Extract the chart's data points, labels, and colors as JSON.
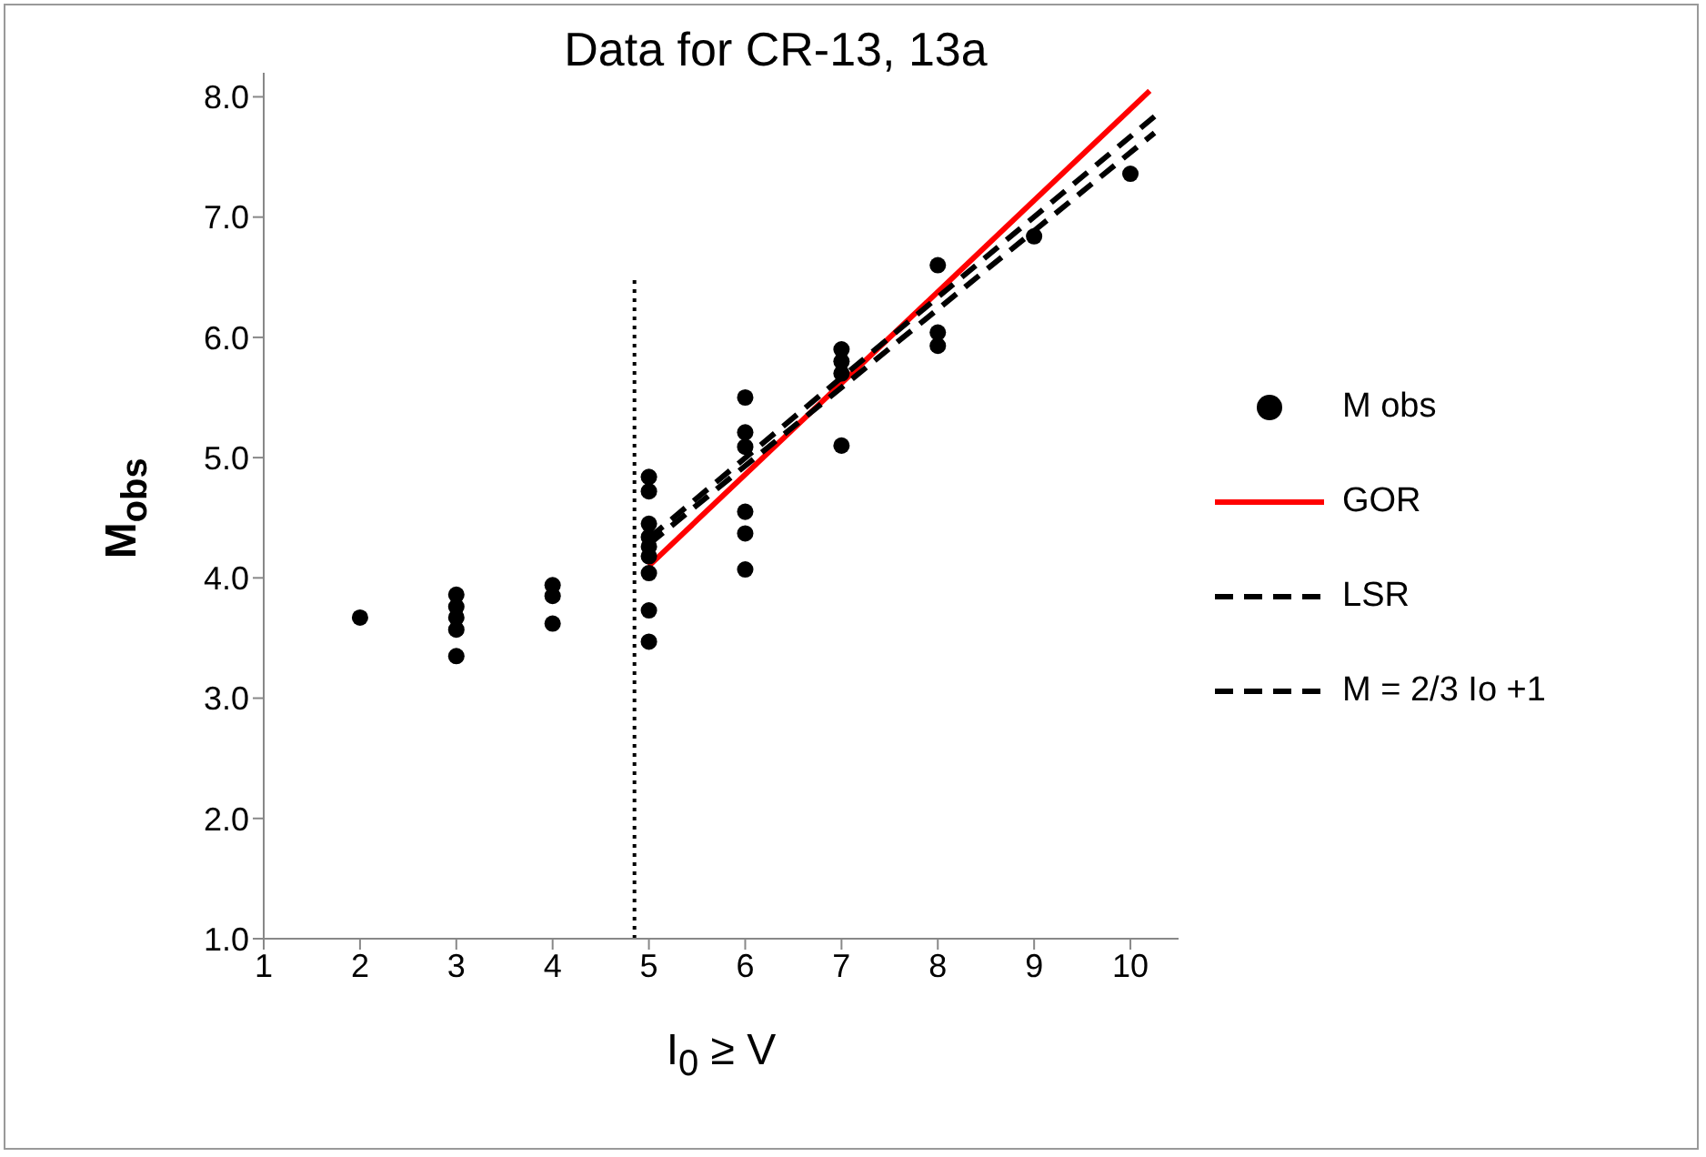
{
  "chart_data": {
    "type": "scatter",
    "title": "Data for CR-13, 13a",
    "xlabel": "I$_{0}$ ≥ V",
    "ylabel": "M$_{obs}$",
    "xlim": [
      1,
      10.5
    ],
    "xticks": [
      1,
      2,
      3,
      4,
      5,
      6,
      7,
      8,
      9,
      10
    ],
    "ylim": [
      1,
      8.2
    ],
    "yticks": [
      {
        "value": 1,
        "label": "1.0"
      },
      {
        "value": 2,
        "label": "2.0"
      },
      {
        "value": 3,
        "label": "3.0"
      },
      {
        "value": 4,
        "label": "4.0"
      },
      {
        "value": 5,
        "label": "5.0"
      },
      {
        "value": 6,
        "label": "6.0"
      },
      {
        "value": 7,
        "label": "7.0"
      },
      {
        "value": 8,
        "label": "8.0"
      }
    ],
    "grid": false,
    "legend": "right",
    "marker": "circle",
    "series": [
      {
        "name": "M obs",
        "color": "#000000",
        "x": [
          2,
          3,
          3,
          3,
          3,
          3,
          4,
          4,
          4,
          5,
          5,
          5,
          5,
          5,
          5,
          5,
          5,
          5,
          6,
          6,
          6,
          6,
          6,
          6,
          7,
          7,
          7,
          7,
          8,
          8,
          8,
          9,
          10
        ],
        "values": [
          3.67,
          3.86,
          3.76,
          3.67,
          3.57,
          3.35,
          3.94,
          3.85,
          3.62,
          4.84,
          4.72,
          4.45,
          4.34,
          4.26,
          4.18,
          4.04,
          3.73,
          3.47,
          5.5,
          5.21,
          5.09,
          4.55,
          4.37,
          4.07,
          5.9,
          5.8,
          5.7,
          5.1,
          6.6,
          6.04,
          5.93,
          6.84,
          7.36
        ]
      },
      {
        "name": "GOR",
        "type": "line",
        "marker": "none",
        "line_style": "solid",
        "color": "#ff0000",
        "x": [
          5,
          10.2
        ],
        "values": [
          4.1,
          8.05
        ]
      },
      {
        "name": "LSR",
        "type": "line",
        "marker": "none",
        "line_style": "dashed",
        "color": "#000000",
        "x": [
          5,
          10.25
        ],
        "values": [
          4.28,
          7.7
        ]
      },
      {
        "name": "M = 2/3 Io +1",
        "type": "line",
        "marker": "none",
        "line_style": "dashed",
        "color": "#000000",
        "x": [
          5,
          10.3
        ],
        "values": [
          4.33,
          7.87
        ]
      },
      {
        "type": "line",
        "marker": "none",
        "line_style": "dotted",
        "color": "#000000",
        "x": [
          4.85,
          4.85
        ],
        "values": [
          1,
          6.5
        ]
      }
    ]
  }
}
